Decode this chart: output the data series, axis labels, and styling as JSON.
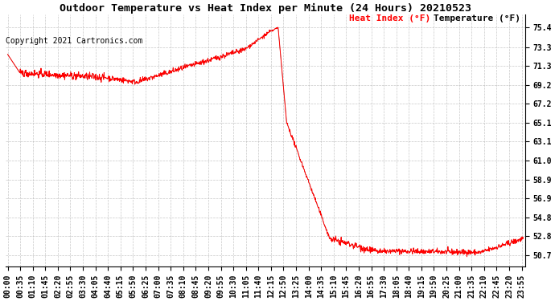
{
  "title": "Outdoor Temperature vs Heat Index per Minute (24 Hours) 20210523",
  "copyright_text": "Copyright 2021 Cartronics.com",
  "legend_heat_index": "Heat Index (°F)",
  "legend_temperature": "Temperature (°F)",
  "heat_index_color": "#ff0000",
  "temperature_color": "#000000",
  "background_color": "#ffffff",
  "grid_color": "#b0b0b0",
  "yticks": [
    50.7,
    52.8,
    54.8,
    56.9,
    58.9,
    61.0,
    63.1,
    65.1,
    67.2,
    69.2,
    71.3,
    73.3,
    75.4
  ],
  "ylim": [
    49.5,
    76.8
  ],
  "title_fontsize": 9.5,
  "copyright_fontsize": 7,
  "legend_fontsize": 8,
  "tick_fontsize": 7,
  "curve_segments": {
    "seg1": {
      "start": 0,
      "end": 35,
      "start_val": 72.5,
      "end_val": 70.5
    },
    "seg2": {
      "start": 35,
      "end": 270,
      "start_val": 70.5,
      "end_val": 70.0,
      "noise": 0.2
    },
    "seg3": {
      "start": 270,
      "end": 360,
      "start_val": 70.0,
      "end_val": 69.5,
      "noise": 0.15
    },
    "seg4": {
      "start": 360,
      "end": 660,
      "start_val": 69.5,
      "end_val": 73.0,
      "noise": 0.15
    },
    "seg5": {
      "start": 660,
      "end": 735,
      "start_val": 73.0,
      "end_val": 75.0,
      "noise": 0.1
    },
    "seg6": {
      "start": 735,
      "end": 755,
      "start_val": 75.0,
      "end_val": 75.4,
      "noise": 0.05
    },
    "seg7": {
      "start": 755,
      "end": 780,
      "start_val": 75.4,
      "end_val": 65.0,
      "noise": 0.0
    },
    "seg8": {
      "start": 780,
      "end": 900,
      "start_val": 65.0,
      "end_val": 52.5,
      "noise": 0.1
    },
    "seg9": {
      "start": 900,
      "end": 1020,
      "start_val": 52.5,
      "end_val": 51.2,
      "noise": 0.2
    },
    "seg10": {
      "start": 1020,
      "end": 1320,
      "start_val": 51.2,
      "end_val": 51.0,
      "noise": 0.15
    },
    "seg11": {
      "start": 1320,
      "end": 1440,
      "start_val": 51.0,
      "end_val": 52.5,
      "noise": 0.15
    }
  },
  "xtick_step": 35,
  "n_points": 1440,
  "xlim": [
    -5,
    1444
  ]
}
